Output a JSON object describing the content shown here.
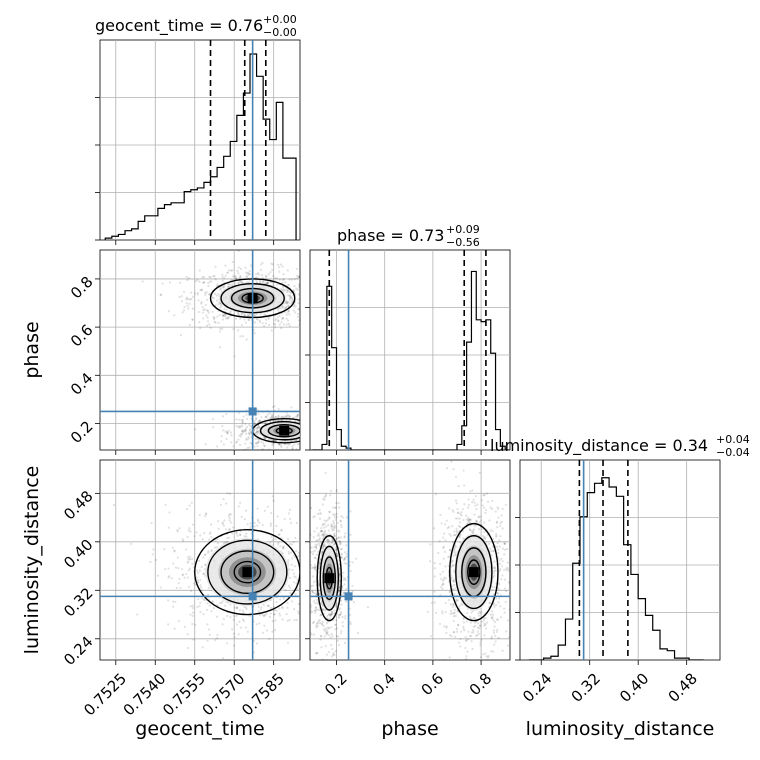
{
  "chart_data": {
    "type": "corner",
    "parameters": [
      "geocent_time",
      "phase",
      "luminosity_distance"
    ],
    "xlabels": [
      "geocent_time",
      "phase",
      "luminosity_distance"
    ],
    "ylabels": [
      "phase",
      "luminosity_distance"
    ],
    "titles": [
      {
        "param": "geocent_time",
        "prefix": "geocent_time = ",
        "median": "0.76",
        "plus": "+0.00",
        "minus": "−0.00"
      },
      {
        "param": "phase",
        "prefix": "phase = ",
        "median": "0.73",
        "plus": "+0.09",
        "minus": "−0.56"
      },
      {
        "param": "luminosity_distance",
        "prefix": "luminosity_distance = ",
        "median": "0.34",
        "plus": "+0.04",
        "minus": "−0.04"
      }
    ],
    "truths": {
      "geocent_time": 0.7577,
      "phase": 0.25,
      "luminosity_distance": 0.31
    },
    "ranges": {
      "geocent_time": [
        0.7519,
        0.7595
      ],
      "phase": [
        0.09,
        0.92
      ],
      "luminosity_distance": [
        0.205,
        0.535
      ]
    },
    "ticks": {
      "geocent_time": [
        0.7525,
        0.754,
        0.7555,
        0.757,
        0.7585
      ],
      "phase": [
        0.2,
        0.4,
        0.6,
        0.8
      ],
      "luminosity_distance": [
        0.24,
        0.32,
        0.4,
        0.48
      ]
    },
    "tick_labels": {
      "geocent_time": [
        "0.7525",
        "0.7540",
        "0.7555",
        "0.7570",
        "0.7585"
      ],
      "phase": [
        "0.2",
        "0.4",
        "0.6",
        "0.8"
      ],
      "luminosity_distance": [
        "0.24",
        "0.32",
        "0.40",
        "0.48"
      ]
    },
    "quantiles": {
      "geocent_time": [
        0.7561,
        0.7574,
        0.7582
      ],
      "phase": [
        0.17,
        0.73,
        0.82
      ],
      "luminosity_distance": [
        0.303,
        0.342,
        0.383
      ]
    },
    "histograms": {
      "geocent_time": {
        "edges": [
          0.7521,
          0.75235,
          0.7526,
          0.75285,
          0.7531,
          0.75335,
          0.7536,
          0.75385,
          0.7541,
          0.75435,
          0.7546,
          0.75485,
          0.7551,
          0.75535,
          0.7556,
          0.75585,
          0.7561,
          0.75635,
          0.7566,
          0.75685,
          0.7571,
          0.75735,
          0.7576,
          0.75785,
          0.7581,
          0.75835,
          0.7586,
          0.75885,
          0.7591,
          0.75935
        ],
        "counts": [
          0.01,
          0.02,
          0.03,
          0.05,
          0.06,
          0.1,
          0.13,
          0.13,
          0.17,
          0.19,
          0.2,
          0.2,
          0.26,
          0.27,
          0.28,
          0.31,
          0.34,
          0.39,
          0.45,
          0.53,
          0.67,
          0.79,
          1.0,
          0.88,
          0.65,
          0.54,
          0.74,
          0.44,
          0.44
        ]
      },
      "phase": {
        "edges": [
          0.1,
          0.12,
          0.14,
          0.16,
          0.18,
          0.2,
          0.22,
          0.24,
          0.26,
          0.28,
          0.3,
          0.32,
          0.34,
          0.36,
          0.38,
          0.4,
          0.42,
          0.44,
          0.46,
          0.48,
          0.5,
          0.52,
          0.54,
          0.56,
          0.58,
          0.6,
          0.62,
          0.64,
          0.66,
          0.68,
          0.7,
          0.72,
          0.74,
          0.76,
          0.78,
          0.8,
          0.82,
          0.84,
          0.86,
          0.88,
          0.9,
          0.92
        ],
        "counts": [
          0.0,
          0.0,
          0.03,
          0.88,
          0.55,
          0.11,
          0.02,
          0.01,
          0.0,
          0.0,
          0.0,
          0.0,
          0.0,
          0.0,
          0.0,
          0.0,
          0.0,
          0.0,
          0.0,
          0.0,
          0.0,
          0.0,
          0.0,
          0.0,
          0.0,
          0.0,
          0.0,
          0.0,
          0.0,
          0.0,
          0.03,
          0.13,
          0.58,
          0.96,
          0.7,
          0.69,
          0.7,
          0.52,
          0.11,
          0.02,
          0.0
        ]
      },
      "luminosity_distance": {
        "edges": [
          0.22,
          0.232,
          0.244,
          0.256,
          0.268,
          0.28,
          0.292,
          0.304,
          0.316,
          0.328,
          0.34,
          0.352,
          0.364,
          0.376,
          0.388,
          0.4,
          0.412,
          0.424,
          0.436,
          0.448,
          0.46,
          0.472,
          0.484,
          0.496,
          0.508
        ],
        "counts": [
          0.0,
          0.0,
          0.01,
          0.02,
          0.08,
          0.22,
          0.52,
          0.77,
          0.9,
          0.95,
          0.98,
          0.93,
          0.88,
          0.62,
          0.46,
          0.33,
          0.24,
          0.16,
          0.06,
          0.05,
          0.01,
          0.01,
          0.0,
          0.0
        ]
      }
    },
    "joint_modes": [
      {
        "x": "geocent_time",
        "y": "phase",
        "modes": [
          {
            "cx": 0.7577,
            "cy": 0.72,
            "sx": 0.0008,
            "sy": 0.04
          },
          {
            "cx": 0.7589,
            "cy": 0.17,
            "sx": 0.0006,
            "sy": 0.025
          }
        ]
      },
      {
        "x": "geocent_time",
        "y": "luminosity_distance",
        "modes": [
          {
            "cx": 0.7575,
            "cy": 0.35,
            "sx": 0.001,
            "sy": 0.035
          }
        ]
      },
      {
        "x": "phase",
        "y": "luminosity_distance",
        "modes": [
          {
            "cx": 0.17,
            "cy": 0.34,
            "sx": 0.025,
            "sy": 0.035
          },
          {
            "cx": 0.77,
            "cy": 0.35,
            "sx": 0.05,
            "sy": 0.04
          }
        ]
      }
    ],
    "grid": true,
    "truth_color": "#4682b4",
    "line_color": "#000000"
  }
}
